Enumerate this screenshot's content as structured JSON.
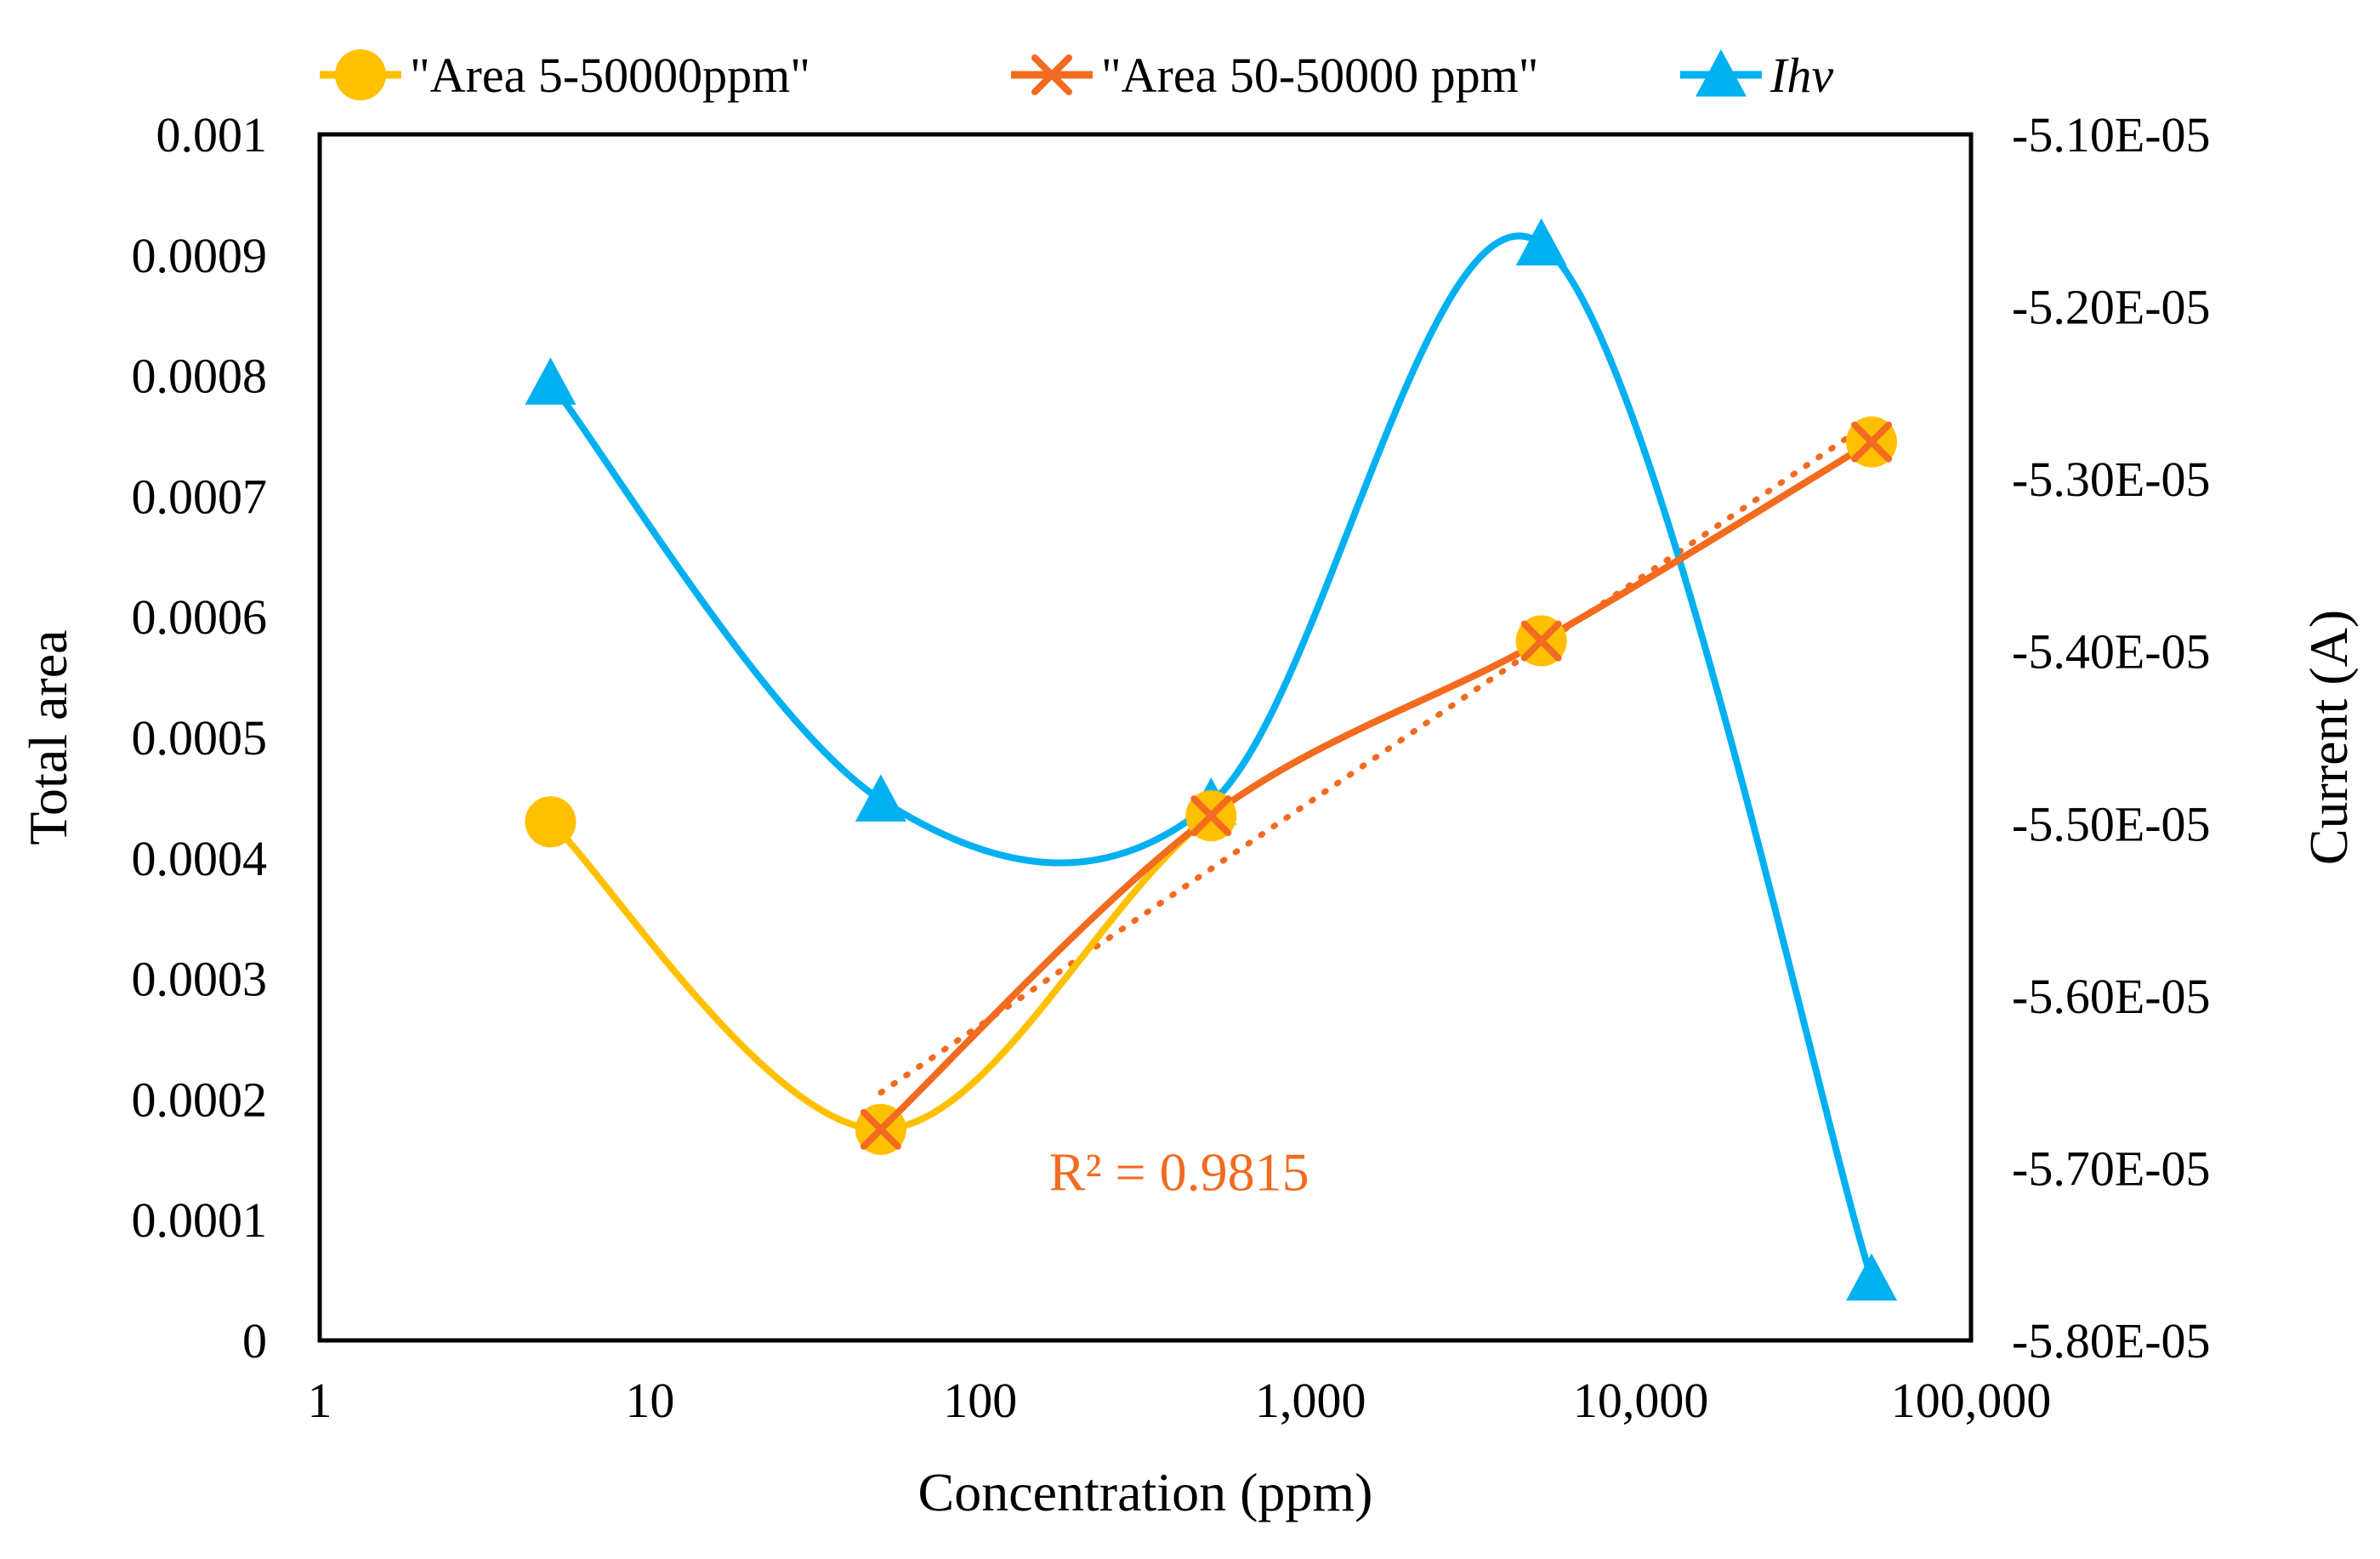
{
  "chart_data": {
    "type": "line",
    "x_scale": "log",
    "xlim": [
      1,
      100000
    ],
    "x_ticks": [
      1,
      10,
      100,
      1000,
      10000,
      100000
    ],
    "x_tick_labels": [
      "1",
      "10",
      "100",
      "1,000",
      "10,000",
      "100,000"
    ],
    "xlabel": "Concentration (ppm)",
    "ylabel": "Total area",
    "ylim": [
      0,
      0.001
    ],
    "y_ticks": [
      0,
      0.0001,
      0.0002,
      0.0003,
      0.0004,
      0.0005,
      0.0006,
      0.0007,
      0.0008,
      0.0009,
      0.001
    ],
    "y_tick_labels": [
      "0",
      "0.0001",
      "0.0002",
      "0.0003",
      "0.0004",
      "0.0005",
      "0.0006",
      "0.0007",
      "0.0008",
      "0.0009",
      "0.001"
    ],
    "y2label": "Current (A)",
    "y2lim": [
      -5.8e-05,
      -5.1e-05
    ],
    "y2_ticks": [
      -5.8e-05,
      -5.7e-05,
      -5.6e-05,
      -5.5e-05,
      -5.4e-05,
      -5.3e-05,
      -5.2e-05,
      -5.1e-05
    ],
    "y2_tick_labels": [
      "-5.80E-05",
      "-5.70E-05",
      "-5.60E-05",
      "-5.50E-05",
      "-5.40E-05",
      "-5.30E-05",
      "-5.20E-05",
      "-5.10E-05"
    ],
    "legend_position": "top",
    "grid": false,
    "series": [
      {
        "name": "\"Area 5-50000ppm\"",
        "axis": "left",
        "color": "#FFC000",
        "marker": "circle",
        "smooth": true,
        "x": [
          5,
          50,
          500,
          5000,
          50000
        ],
        "y": [
          0.00043,
          0.000175,
          0.000435,
          0.00058,
          0.000745
        ]
      },
      {
        "name": "\"Area 50-50000 ppm\"",
        "axis": "left",
        "color": "#F26B21",
        "marker": "x",
        "smooth": true,
        "trendline": "dotted",
        "x": [
          50,
          500,
          5000,
          50000
        ],
        "y": [
          0.000175,
          0.000435,
          0.00058,
          0.000745
        ]
      },
      {
        "name": "Ihv",
        "axis": "right",
        "color": "#00B0F0",
        "marker": "triangle",
        "smooth": true,
        "x": [
          5,
          50,
          500,
          5000,
          50000
        ],
        "y": [
          -5.2443e-05,
          -5.4862e-05,
          -5.4881e-05,
          -5.1635e-05,
          -5.7643e-05
        ]
      }
    ],
    "annotations": [
      {
        "text": "R² = 0.9815",
        "x": 400,
        "y": 0.00014,
        "color": "#F26B21"
      }
    ]
  }
}
